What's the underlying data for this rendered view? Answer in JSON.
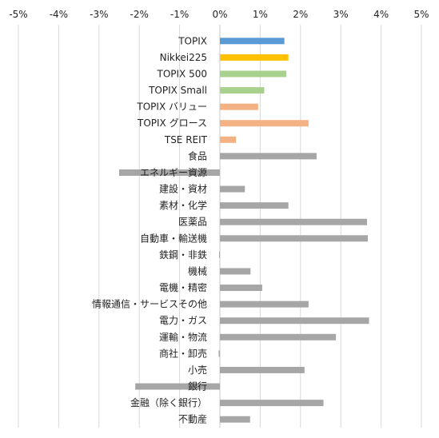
{
  "chart_data": {
    "type": "bar",
    "orientation": "horizontal",
    "xlim": [
      -5,
      5
    ],
    "x_ticks": [
      "-5%",
      "-4%",
      "-3%",
      "-2%",
      "-1%",
      "0%",
      "1%",
      "2%",
      "3%",
      "4%",
      "5%"
    ],
    "tick_position": "top",
    "grid": true,
    "legend": "none",
    "categories": [
      "TOPIX",
      "Nikkei225",
      "TOPIX 500",
      "TOPIX Small",
      "TOPIX バリュー",
      "TOPIX グロース",
      "TSE REIT",
      "食品",
      "エネルギー資源",
      "建設・資材",
      "素材・化学",
      "医薬品",
      "自動車・輸送機",
      "鉄鋼・非鉄",
      "機械",
      "電機・精密",
      "情報通信・サービスその他",
      "電力・ガス",
      "運輸・物流",
      "商社・卸売",
      "小売",
      "銀行",
      "金融（除く銀行）",
      "不動産"
    ],
    "values": [
      1.6,
      1.7,
      1.65,
      1.1,
      0.95,
      2.2,
      0.4,
      2.4,
      -2.5,
      0.62,
      1.7,
      3.65,
      3.67,
      -0.02,
      0.76,
      1.05,
      2.2,
      3.7,
      2.88,
      -0.03,
      2.1,
      -2.1,
      2.57,
      0.75
    ],
    "colors": [
      "#5b9bd5",
      "#ffc000",
      "#a9d18e",
      "#a9d18e",
      "#f4b183",
      "#f4b183",
      "#f4b183",
      "#a6a6a6",
      "#a6a6a6",
      "#a6a6a6",
      "#a6a6a6",
      "#a6a6a6",
      "#a6a6a6",
      "#a6a6a6",
      "#a6a6a6",
      "#a6a6a6",
      "#a6a6a6",
      "#a6a6a6",
      "#a6a6a6",
      "#a6a6a6",
      "#a6a6a6",
      "#a6a6a6",
      "#a6a6a6",
      "#a6a6a6"
    ]
  }
}
